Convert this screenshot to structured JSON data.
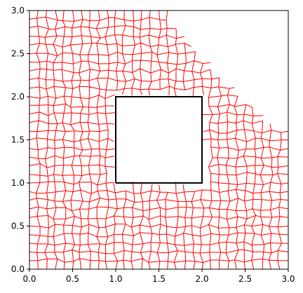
{
  "chart_data": {
    "type": "line",
    "series": [
      {
        "color": "#000000",
        "x": [
          1,
          2,
          2,
          1,
          1
        ],
        "values": [
          1,
          1,
          2,
          2,
          1
        ]
      }
    ],
    "mesh_color": "#ff0000",
    "xlim": [
      0,
      3
    ],
    "ylim": [
      0,
      3
    ],
    "xticks": [
      {
        "value": 0,
        "label": "0.0"
      },
      0.5,
      {
        "value": 1,
        "label": "1.0"
      },
      1.5,
      {
        "value": 2,
        "label": "2.0"
      },
      2.5,
      {
        "value": 3,
        "label": "3.0"
      }
    ],
    "yticks": [
      {
        "value": 0,
        "label": "0.0"
      },
      0.5,
      {
        "value": 1,
        "label": "1.0"
      },
      1.5,
      {
        "value": 2,
        "label": "2.0"
      },
      2.5,
      {
        "value": 3,
        "label": "3.0"
      }
    ]
  }
}
